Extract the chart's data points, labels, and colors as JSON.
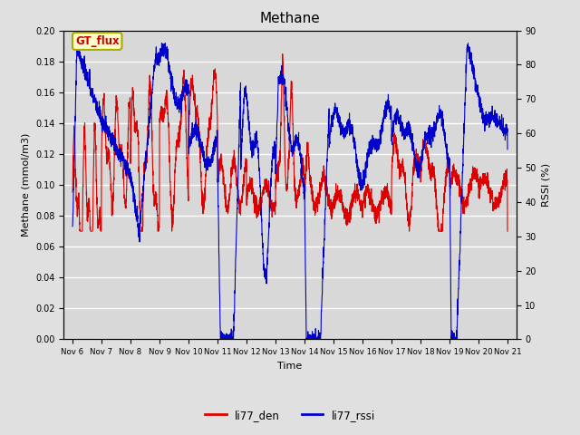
{
  "title": "Methane",
  "xlabel": "Time",
  "ylabel_left": "Methane (mmol/m3)",
  "ylabel_right": "RSSI (%)",
  "ylim_left": [
    0.0,
    0.2
  ],
  "ylim_right": [
    0,
    90
  ],
  "yticks_left": [
    0.0,
    0.02,
    0.04,
    0.06,
    0.08,
    0.1,
    0.12,
    0.14,
    0.16,
    0.18,
    0.2
  ],
  "yticks_right": [
    0,
    10,
    20,
    30,
    40,
    50,
    60,
    70,
    80,
    90
  ],
  "xtick_labels": [
    "Nov 6",
    "Nov 7",
    "Nov 8",
    "Nov 9",
    "Nov 10",
    "Nov 11",
    "Nov 12",
    "Nov 13",
    "Nov 14",
    "Nov 15",
    "Nov 16",
    "Nov 17",
    "Nov 18",
    "Nov 19",
    "Nov 20",
    "Nov 21"
  ],
  "background_color": "#e0e0e0",
  "plot_bg_color": "#d8d8d8",
  "grid_color": "#ffffff",
  "line_color_red": "#dd0000",
  "line_color_blue": "#0000cc",
  "legend_labels": [
    "li77_den",
    "li77_rssi"
  ],
  "annotation_text": "GT_flux",
  "annotation_bg": "#ffffcc",
  "annotation_border": "#aaaa00"
}
